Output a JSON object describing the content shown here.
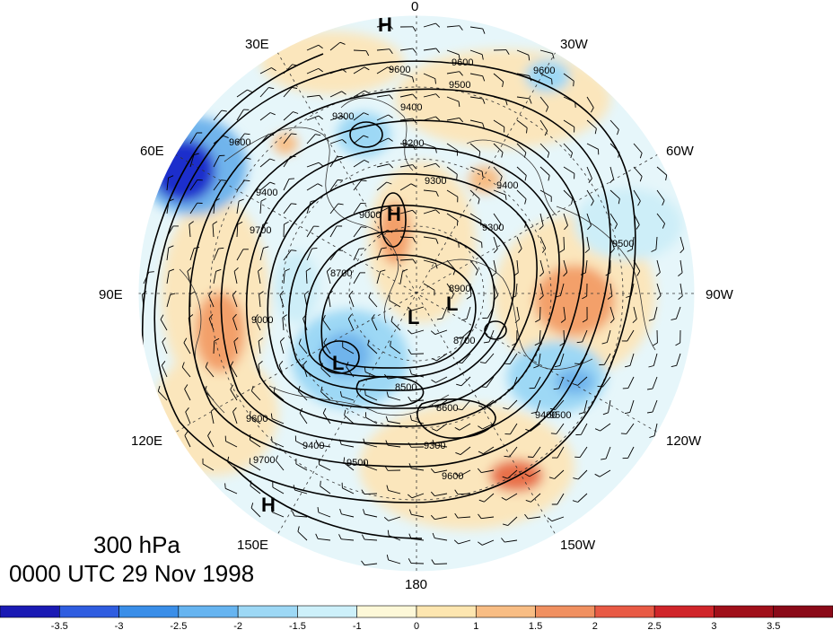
{
  "caption": {
    "level": "300 hPa",
    "time": "0000 UTC 29 Nov 1998"
  },
  "longitude_labels": {
    "lon_0": "0",
    "lon_30w": "30W",
    "lon_60w": "60W",
    "lon_90w": "90W",
    "lon_120w": "120W",
    "lon_150w": "150W",
    "lon_180": "180",
    "lon_150e": "150E",
    "lon_120e": "120E",
    "lon_90e": "90E",
    "lon_60e": "60E",
    "lon_30e": "30E"
  },
  "contour_labels": [
    "9600",
    "9600",
    "9500",
    "9400",
    "9300",
    "9600",
    "9200",
    "9300",
    "9000",
    "9400",
    "9600",
    "9400",
    "9300",
    "9500",
    "8900",
    "8700",
    "8500",
    "8600",
    "9400",
    "9500",
    "9300",
    "9400",
    "9500",
    "9600",
    "9700",
    "9600",
    "9700",
    "8700",
    "9000"
  ],
  "centers": {
    "high_north": "H",
    "high_center": "H",
    "high_southwest": "H",
    "low_center": "L",
    "low_west": "L",
    "low_east": "L"
  },
  "colorbar": {
    "ticks": [
      "-3.5",
      "-3",
      "-2.5",
      "-2",
      "-1.5",
      "-1",
      "0",
      "1",
      "1.5",
      "2",
      "2.5",
      "3",
      "3.5"
    ],
    "colors": [
      "#1f1fc8",
      "#2f5de0",
      "#3a8ee8",
      "#66b4f0",
      "#9dd8f5",
      "#cdf0fa",
      "#fdf8d8",
      "#fde6b0",
      "#f8bd84",
      "#f09060",
      "#e85a45",
      "#d0252a",
      "#a0101a"
    ]
  },
  "field_colors": {
    "ocean_neutral": "#e6f6fa",
    "warm_pale": "#fbe6bc",
    "cold_pale": "#cdeef8",
    "cold_medium": "#6fb4ec",
    "cold_strong": "#1f2fcc",
    "warm_medium": "#f3a06a",
    "warm_strong": "#e8704a"
  }
}
